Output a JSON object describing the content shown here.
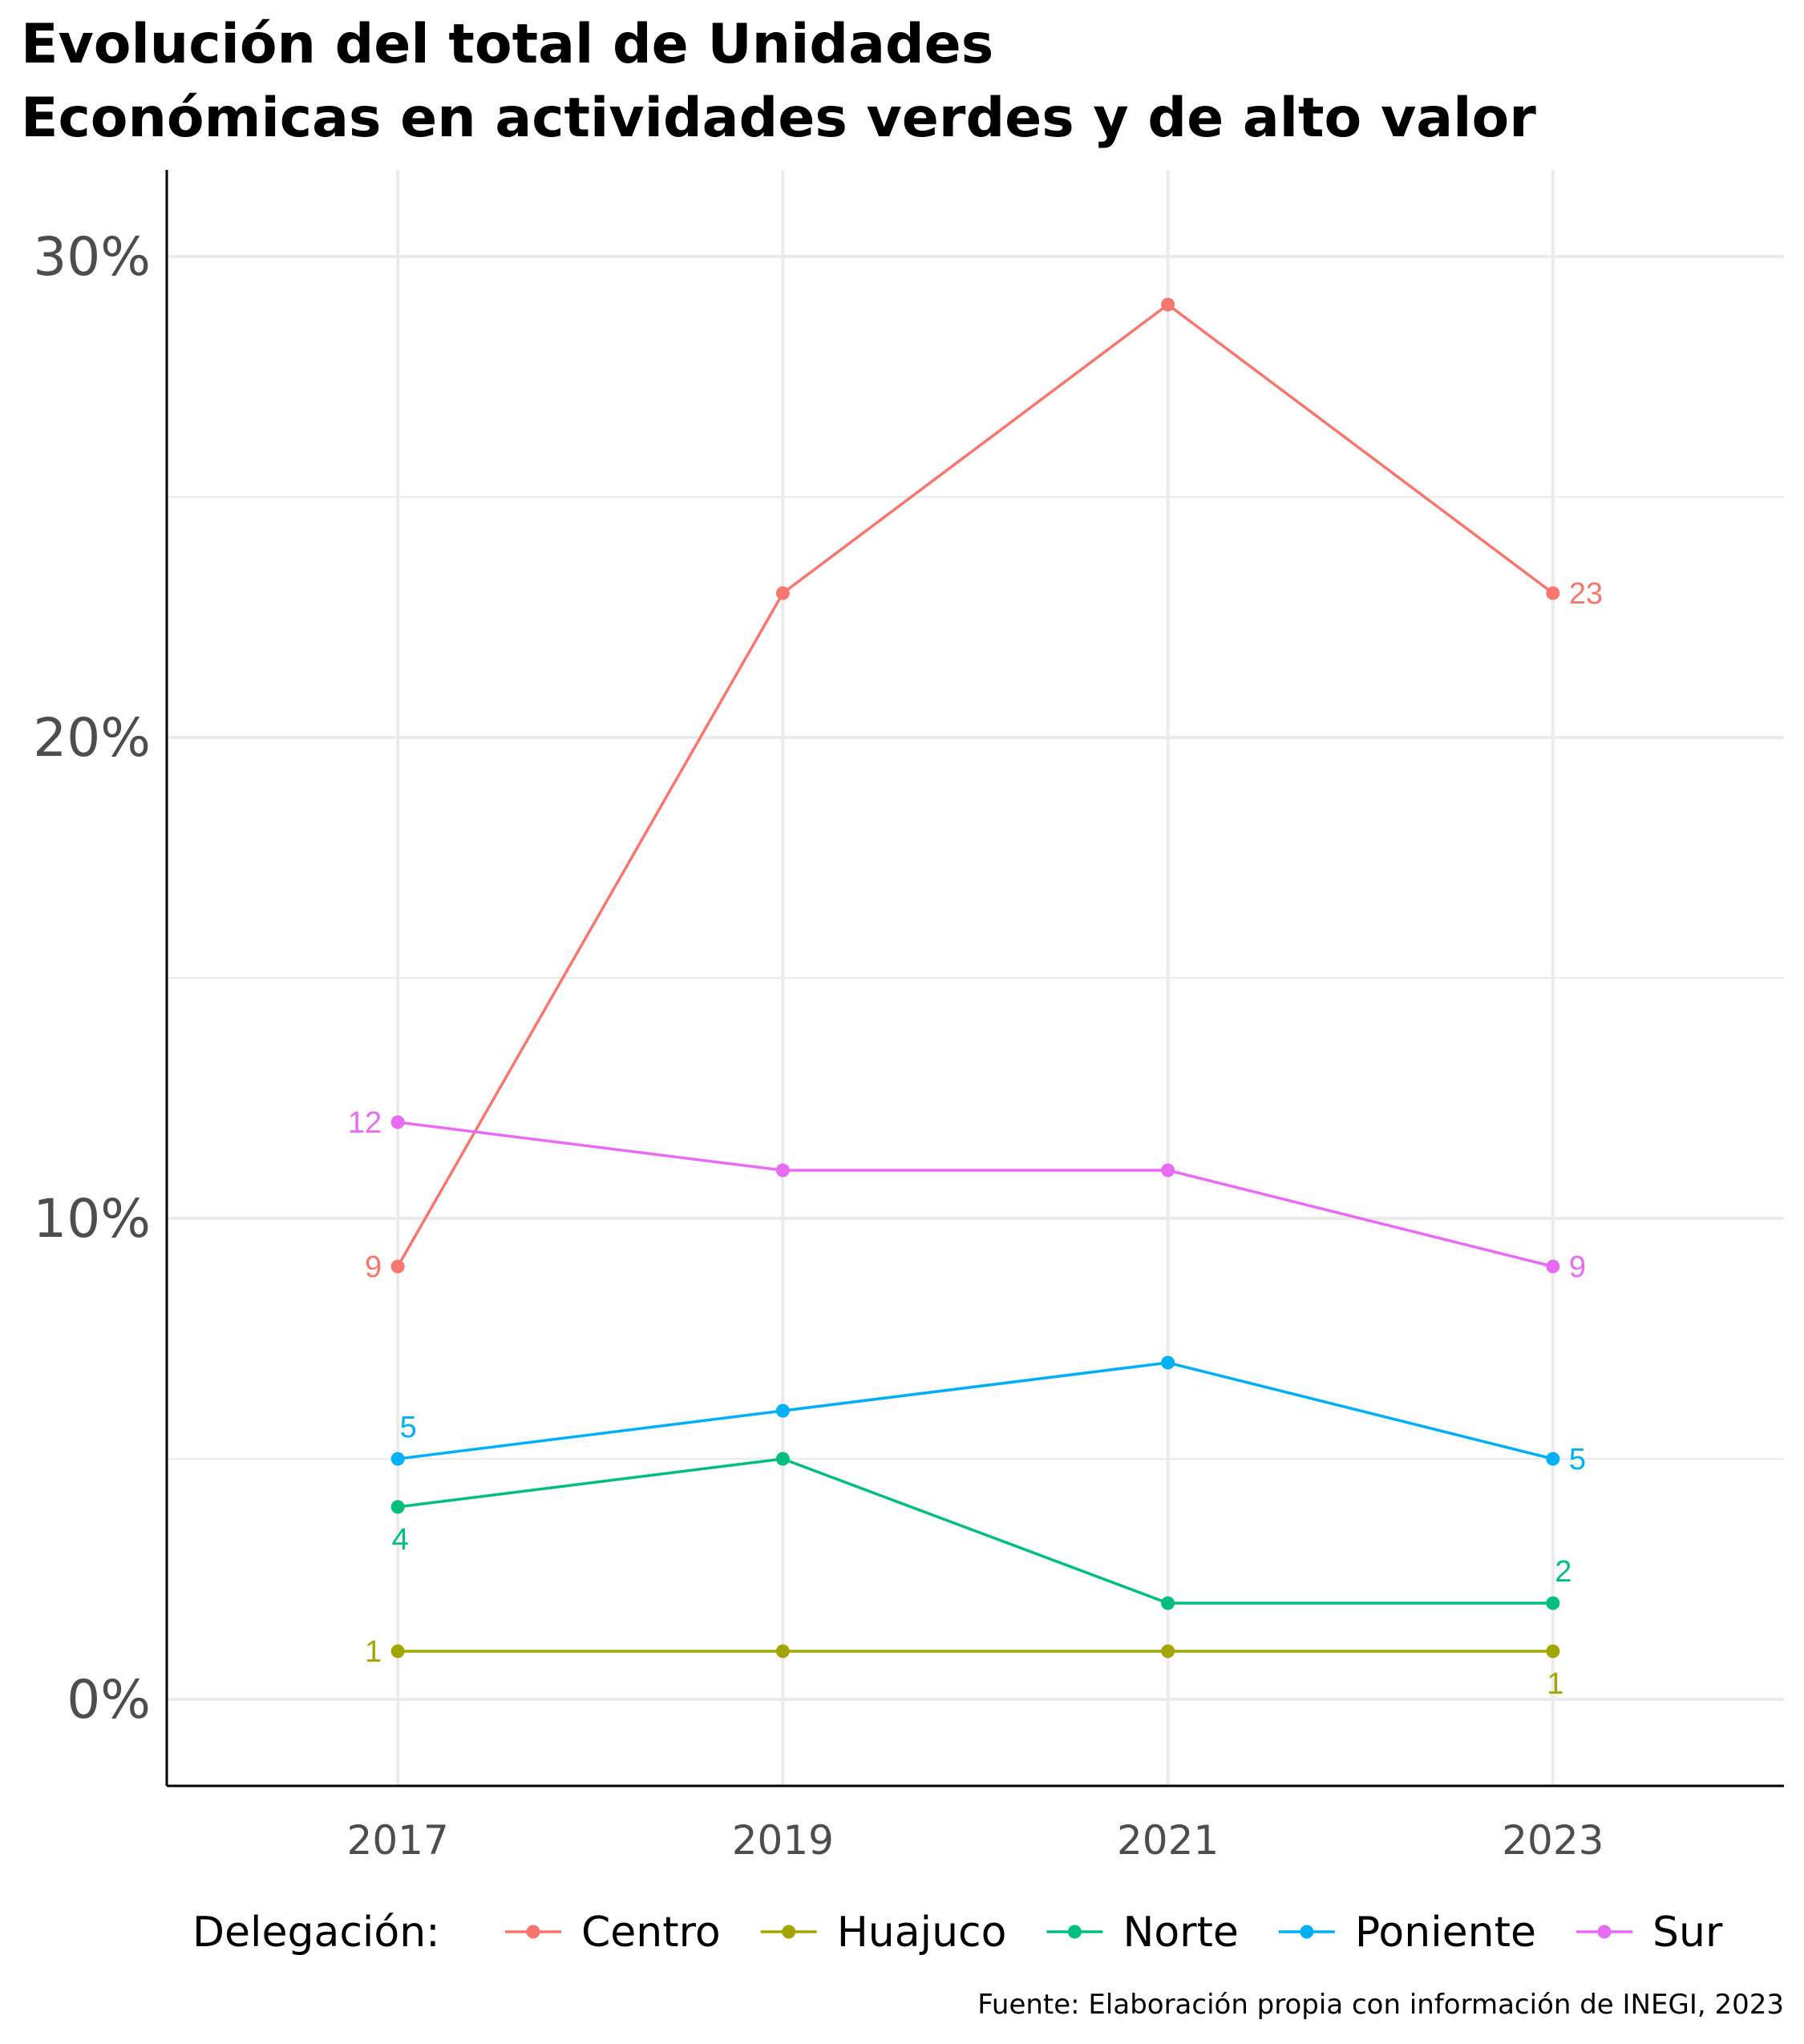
{
  "chart_data": {
    "type": "line",
    "title_lines": [
      "Evolución del total de Unidades",
      "Económicas en actividades verdes y de alto valor"
    ],
    "x": [
      2017,
      2019,
      2021,
      2023
    ],
    "x_tick_labels": [
      "2017",
      "2019",
      "2021",
      "2023"
    ],
    "x_range": [
      2015.8,
      2024.2
    ],
    "y_range": [
      -1.8,
      31.8
    ],
    "y_ticks": [
      0,
      10,
      20,
      30
    ],
    "y_tick_labels": [
      "0%",
      "10%",
      "20%",
      "30%"
    ],
    "y_minor_ticks": [
      5,
      15,
      25
    ],
    "grid": true,
    "legend_title": "Delegación:",
    "legend_position": "bottom",
    "series": [
      {
        "name": "Centro",
        "color": "#F8766D",
        "values": [
          9,
          23,
          29,
          23
        ]
      },
      {
        "name": "Huajuco",
        "color": "#A3A500",
        "values": [
          1,
          1,
          1,
          1
        ]
      },
      {
        "name": "Norte",
        "color": "#00BF7D",
        "values": [
          4,
          5,
          2,
          2
        ]
      },
      {
        "name": "Poniente",
        "color": "#00B0F6",
        "values": [
          5,
          6,
          7,
          5
        ]
      },
      {
        "name": "Sur",
        "color": "#E76BF3",
        "values": [
          12,
          11,
          11,
          9
        ]
      }
    ],
    "data_labels": [
      {
        "series": "Centro",
        "x": 2017,
        "y": 9,
        "text": "9",
        "placement": "left"
      },
      {
        "series": "Centro",
        "x": 2023,
        "y": 23,
        "text": "23",
        "placement": "right"
      },
      {
        "series": "Huajuco",
        "x": 2017,
        "y": 1,
        "text": "1",
        "placement": "left"
      },
      {
        "series": "Huajuco",
        "x": 2023,
        "y": 1,
        "text": "1",
        "placement": "below"
      },
      {
        "series": "Norte",
        "x": 2017,
        "y": 4,
        "text": "4",
        "placement": "below"
      },
      {
        "series": "Norte",
        "x": 2023,
        "y": 2,
        "text": "2",
        "placement": "above"
      },
      {
        "series": "Poniente",
        "x": 2017,
        "y": 5,
        "text": "5",
        "placement": "above"
      },
      {
        "series": "Poniente",
        "x": 2023,
        "y": 5,
        "text": "5",
        "placement": "right"
      },
      {
        "series": "Sur",
        "x": 2017,
        "y": 12,
        "text": "12",
        "placement": "left"
      },
      {
        "series": "Sur",
        "x": 2023,
        "y": 9,
        "text": "9",
        "placement": "right"
      }
    ],
    "caption": "Fuente: Elaboración propia con información de INEGI, 2023"
  }
}
